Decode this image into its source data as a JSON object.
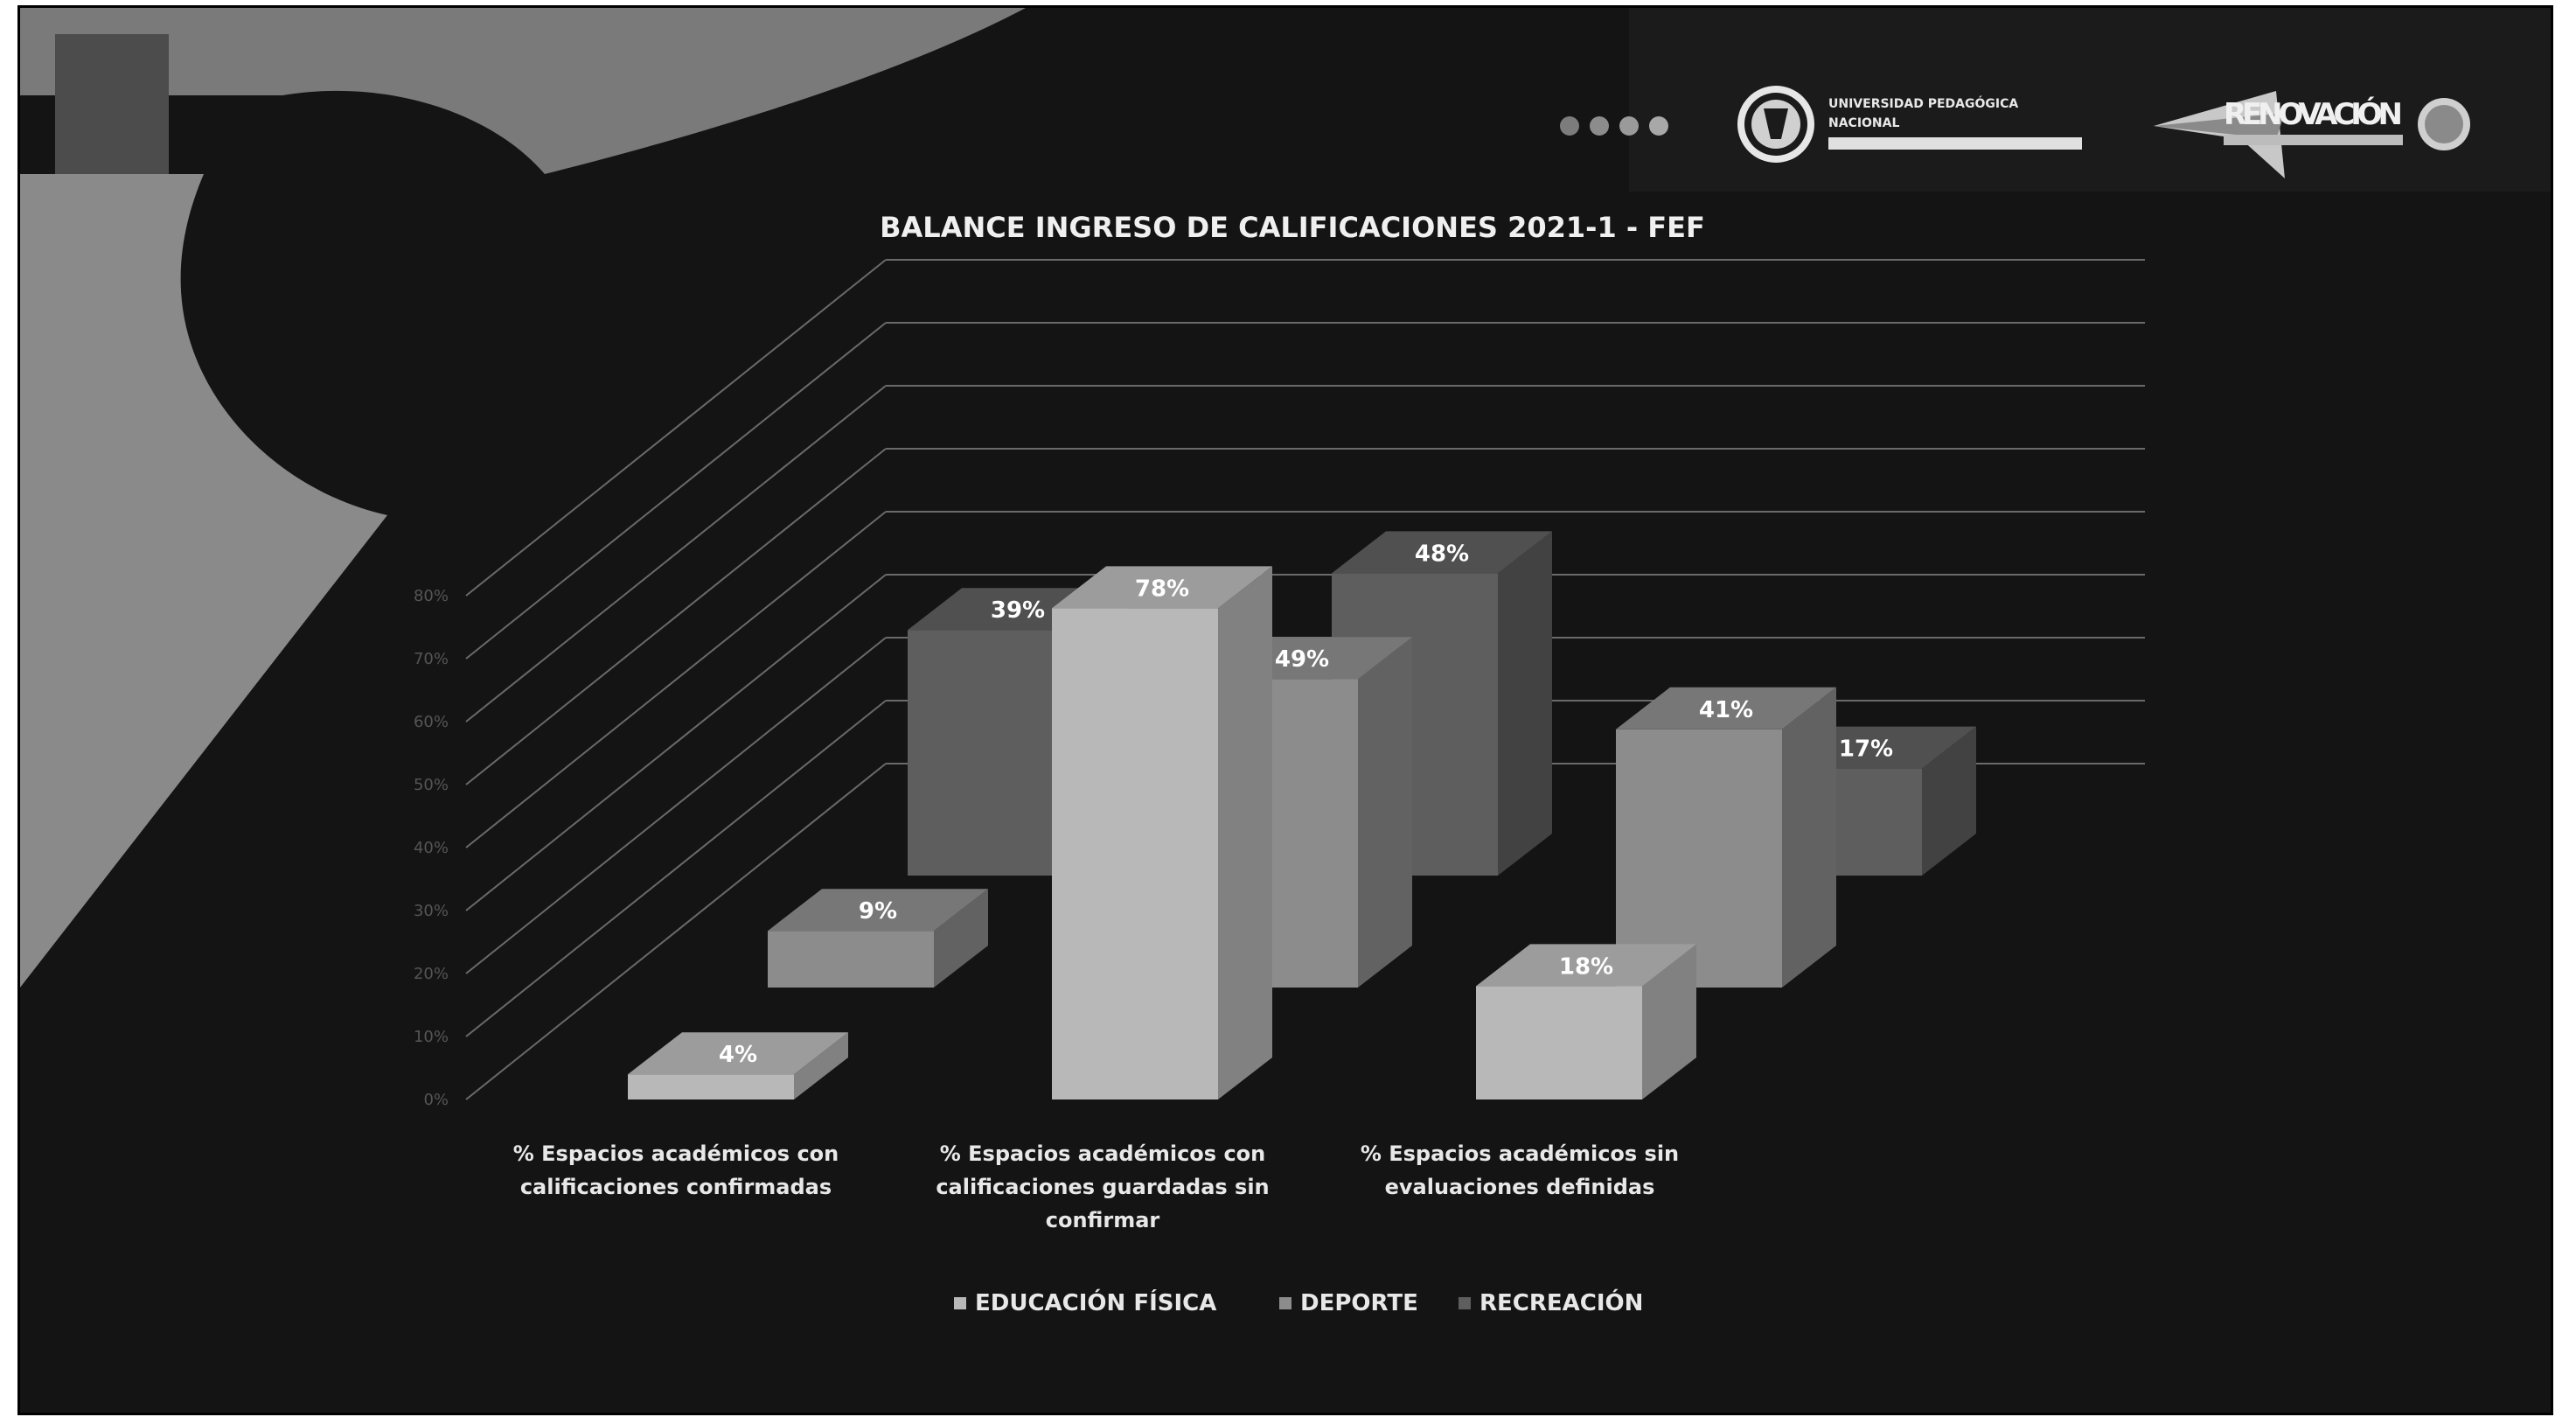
{
  "header": {
    "university_name_line1": "UNIVERSIDAD PEDAGÓGICA",
    "university_name_line2": "NACIONAL",
    "renovation_logo_text": "RENOVACIÓN"
  },
  "colors": {
    "background": "#141414",
    "grid": "#6a6a6a",
    "bar_educacion_fisica": "#b8b8b8",
    "bar_deporte": "#8c8c8c",
    "bar_recreacion": "#5e5e5e",
    "text": "#e8e8e8"
  },
  "chart_data": {
    "type": "bar",
    "style": "3d-clustered",
    "title": "BALANCE INGRESO DE CALIFICACIONES 2021-1 -  FEF",
    "categories": [
      "% Espacios académicos con calificaciones confirmadas",
      "% Espacios académicos con calificaciones guardadas sin confirmar",
      "% Espacios académicos sin evaluaciones definidas"
    ],
    "category_lines": [
      [
        "% Espacios académicos con",
        "calificaciones confirmadas"
      ],
      [
        "% Espacios académicos con",
        "calificaciones guardadas sin",
        "confirmar"
      ],
      [
        "% Espacios académicos sin",
        "evaluaciones definidas"
      ]
    ],
    "series": [
      {
        "name": "EDUCACIÓN FÍSICA",
        "values": [
          4,
          78,
          18
        ],
        "labels": [
          "4%",
          "78%",
          "18%"
        ]
      },
      {
        "name": "DEPORTE",
        "values": [
          9,
          49,
          41
        ],
        "labels": [
          "9%",
          "49%",
          "41%"
        ]
      },
      {
        "name": "RECREACIÓN",
        "values": [
          39,
          48,
          17
        ],
        "labels": [
          "39%",
          "48%",
          "17%"
        ]
      }
    ],
    "ylim": [
      0,
      80
    ],
    "yticks": [
      "0%",
      "10%",
      "20%",
      "30%",
      "40%",
      "50%",
      "60%",
      "70%",
      "80%"
    ],
    "grid": true,
    "legend_position": "bottom"
  }
}
